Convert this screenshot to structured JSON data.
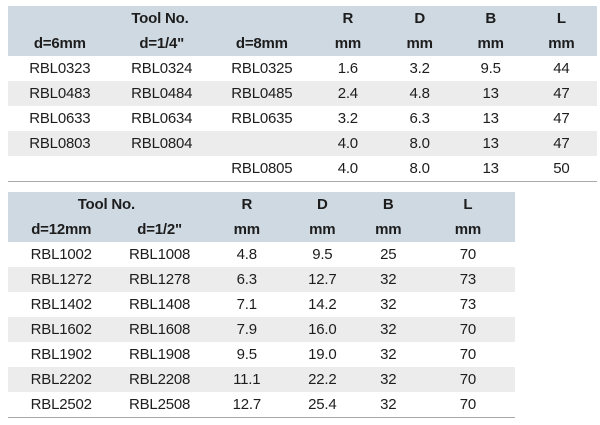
{
  "colors": {
    "header_bg": "#cfd9e2",
    "stripe_bg": "#ececec",
    "border": "#a8a8a8",
    "text": "#1d1d1d"
  },
  "tables": [
    {
      "header": {
        "tool_no_label": "Tool No.",
        "metric_cols": [
          "R",
          "D",
          "B",
          "L"
        ],
        "unit": "mm",
        "sub_labels": [
          "d=6mm",
          "d=1/4\"",
          "d=8mm"
        ]
      },
      "rows": [
        [
          "RBL0323",
          "RBL0324",
          "RBL0325",
          "1.6",
          "3.2",
          "9.5",
          "44"
        ],
        [
          "RBL0483",
          "RBL0484",
          "RBL0485",
          "2.4",
          "4.8",
          "13",
          "47"
        ],
        [
          "RBL0633",
          "RBL0634",
          "RBL0635",
          "3.2",
          "6.3",
          "13",
          "47"
        ],
        [
          "RBL0803",
          "RBL0804",
          "",
          "4.0",
          "8.0",
          "13",
          "47"
        ],
        [
          "",
          "",
          "RBL0805",
          "4.0",
          "8.0",
          "13",
          "50"
        ]
      ]
    },
    {
      "header": {
        "tool_no_label": "Tool No.",
        "metric_cols": [
          "R",
          "D",
          "B",
          "L"
        ],
        "unit": "mm",
        "sub_labels": [
          "d=12mm",
          "d=1/2\""
        ]
      },
      "rows": [
        [
          "RBL1002",
          "RBL1008",
          "4.8",
          "9.5",
          "25",
          "70"
        ],
        [
          "RBL1272",
          "RBL1278",
          "6.3",
          "12.7",
          "32",
          "73"
        ],
        [
          "RBL1402",
          "RBL1408",
          "7.1",
          "14.2",
          "32",
          "73"
        ],
        [
          "RBL1602",
          "RBL1608",
          "7.9",
          "16.0",
          "32",
          "70"
        ],
        [
          "RBL1902",
          "RBL1908",
          "9.5",
          "19.0",
          "32",
          "70"
        ],
        [
          "RBL2202",
          "RBL2208",
          "11.1",
          "22.2",
          "32",
          "70"
        ],
        [
          "RBL2502",
          "RBL2508",
          "12.7",
          "25.4",
          "32",
          "70"
        ]
      ]
    }
  ]
}
